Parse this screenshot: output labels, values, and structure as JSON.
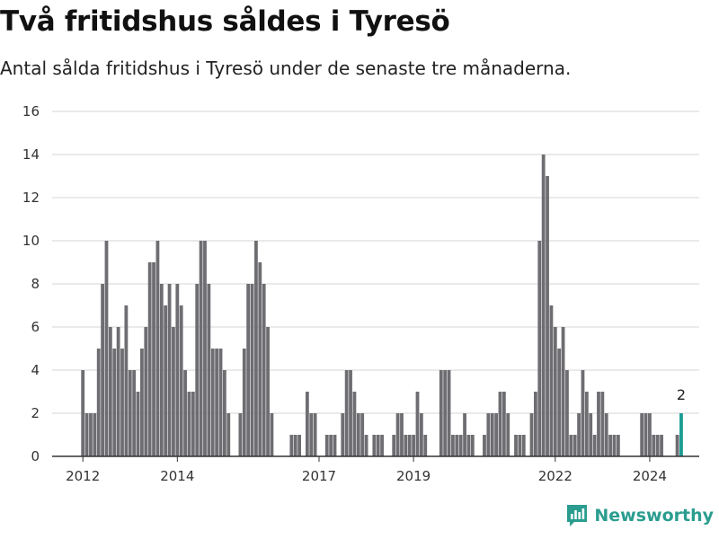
{
  "title": "Två fritidshus såldes i Tyresö",
  "subtitle": "Antal sålda fritidshus i Tyresö under de senaste tre månaderna.",
  "brand": {
    "name": "Newsworthy",
    "color": "#2a9d8f",
    "icon": "newsworthy-logo-icon"
  },
  "colors": {
    "bar": "#6e6d71",
    "highlight": "#1a9c94",
    "grid": "#d4d4d4"
  },
  "chart_data": {
    "type": "bar",
    "title": "",
    "xlabel": "",
    "ylabel": "",
    "ylim": [
      0,
      16
    ],
    "grid": true,
    "y_ticks": [
      0,
      2,
      4,
      6,
      8,
      10,
      12,
      14,
      16
    ],
    "x_tick_labels": [
      {
        "label": "2012",
        "at": 0
      },
      {
        "label": "2014",
        "at": 24
      },
      {
        "label": "2017",
        "at": 60
      },
      {
        "label": "2019",
        "at": 84
      },
      {
        "label": "2022",
        "at": 120
      },
      {
        "label": "2024",
        "at": 144
      }
    ],
    "series": [
      {
        "values": [
          4,
          2,
          2,
          2,
          5,
          8,
          10,
          6,
          5,
          6,
          5,
          7,
          4,
          4,
          3,
          5,
          6,
          9,
          9,
          10,
          8,
          7,
          8,
          6,
          8,
          7,
          4,
          3,
          3,
          8,
          10,
          10,
          8,
          5,
          5,
          5,
          4,
          2,
          0,
          0,
          2,
          5,
          8,
          8,
          10,
          9,
          8,
          6,
          2,
          0,
          0,
          0,
          0,
          1,
          1,
          1,
          0,
          3,
          2,
          2,
          0,
          0,
          1,
          1,
          1,
          0,
          2,
          4,
          4,
          3,
          2,
          2,
          1,
          0,
          1,
          1,
          1,
          0,
          0,
          1,
          2,
          2,
          1,
          1,
          1,
          3,
          2,
          1,
          0,
          0,
          0,
          4,
          4,
          4,
          1,
          1,
          1,
          2,
          1,
          1,
          0,
          0,
          1,
          2,
          2,
          2,
          3,
          3,
          2,
          0,
          1,
          1,
          1,
          0,
          2,
          3,
          10,
          14,
          13,
          7,
          6,
          5,
          6,
          4,
          1,
          1,
          2,
          4,
          3,
          2,
          1,
          3,
          3,
          2,
          1,
          1,
          1,
          0,
          0,
          0,
          0,
          0,
          2,
          2,
          2,
          1,
          1,
          1,
          0,
          0,
          0,
          1,
          2
        ]
      }
    ],
    "highlight": {
      "index": 152,
      "value": 2,
      "label": "2"
    }
  }
}
